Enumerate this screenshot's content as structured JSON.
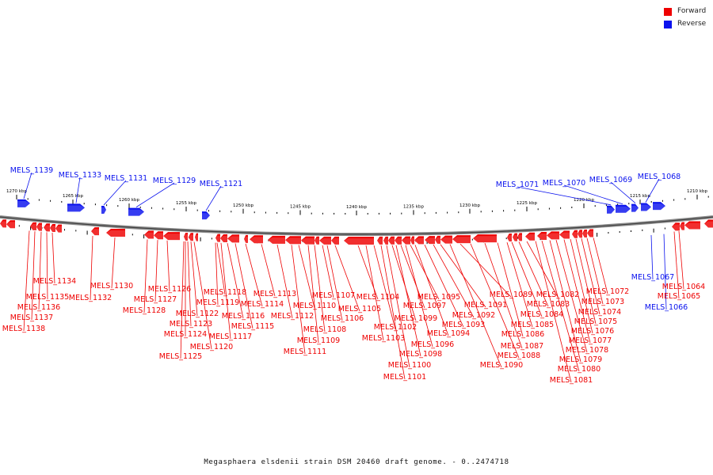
{
  "legend": {
    "forward_label": "Forward",
    "reverse_label": "Reverse",
    "forward_color": "#ee0000",
    "reverse_color": "#0a12ee"
  },
  "caption": "Megasphaera elsdenii strain DSM 20460 draft genome. - 0..2474718",
  "axis": {
    "ticks": [
      "1270 kbp",
      "1265 kbp",
      "1260 kbp",
      "1255 kbp",
      "1250 kbp",
      "1245 kbp",
      "1240 kbp",
      "1235 kbp",
      "1230 kbp",
      "1225 kbp",
      "1220 kbp",
      "1215 kbp",
      "1210 kbp"
    ]
  },
  "reverse_labels": [
    "MELS_1139",
    "MELS_1133",
    "MELS_1131",
    "MELS_1129",
    "MELS_1121",
    "MELS_1071",
    "MELS_1070",
    "MELS_1069",
    "MELS_1068",
    "MELS_1067",
    "MELS_1066"
  ],
  "forward_labels": [
    "MELS_1138",
    "MELS_1137",
    "MELS_1136",
    "MELS_1135",
    "MELS_1134",
    "MELS_1132",
    "MELS_1130",
    "MELS_1128",
    "MELS_1127",
    "MELS_1126",
    "MELS_1125",
    "MELS_1124",
    "MELS_1123",
    "MELS_1122",
    "MELS_1120",
    "MELS_1119",
    "MELS_1118",
    "MELS_1117",
    "MELS_1116",
    "MELS_1115",
    "MELS_1114",
    "MELS_1113",
    "MELS_1112",
    "MELS_1111",
    "MELS_1110",
    "MELS_1109",
    "MELS_1108",
    "MELS_1107",
    "MELS_1106",
    "MELS_1105",
    "MELS_1104",
    "MELS_1103",
    "MELS_1102",
    "MELS_1101",
    "MELS_1100",
    "MELS_1099",
    "MELS_1098",
    "MELS_1097",
    "MELS_1096",
    "MELS_1095",
    "MELS_1094",
    "MELS_1093",
    "MELS_1092",
    "MELS_1091",
    "MELS_1090",
    "MELS_1089",
    "MELS_1088",
    "MELS_1087",
    "MELS_1086",
    "MELS_1085",
    "MELS_1084",
    "MELS_1083",
    "MELS_1082",
    "MELS_1081",
    "MELS_1080",
    "MELS_1079",
    "MELS_1078",
    "MELS_1077",
    "MELS_1076",
    "MELS_1075",
    "MELS_1074",
    "MELS_1073",
    "MELS_1072",
    "MELS_1065",
    "MELS_1064"
  ]
}
